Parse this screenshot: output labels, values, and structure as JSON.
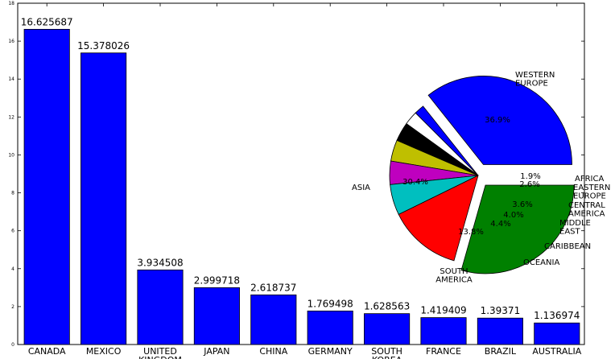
{
  "chart_data": [
    {
      "type": "bar",
      "title": "",
      "xlabel": "",
      "ylabel": "",
      "ylim": [
        0,
        18
      ],
      "yticks": [
        0,
        2,
        4,
        6,
        8,
        10,
        12,
        14,
        16,
        18
      ],
      "categories": [
        "CANADA",
        "MEXICO",
        "UNITED KINGDOM",
        "JAPAN",
        "CHINA",
        "GERMANY",
        "SOUTH KOREA",
        "FRANCE",
        "BRAZIL",
        "AUSTRALIA"
      ],
      "category_display": [
        "CANADA",
        "MEXICO",
        "UNITED KINGDOM",
        "JAPAN",
        "CHINA",
        "GERMANY",
        "SOUTH KOREA",
        "FRANCE",
        "BRAZIL",
        "AUSTRALIA"
      ],
      "values": [
        16.625687,
        15.378026,
        3.934508,
        2.999718,
        2.618737,
        1.769498,
        1.628563,
        1.419409,
        1.39371,
        1.136974
      ],
      "value_labels": [
        "16.625687",
        "15.378026",
        "3.934508",
        "2.999718",
        "2.618737",
        "1.769498",
        "1.628563",
        "1.419409",
        "1.39371",
        "1.136974"
      ],
      "color": "#0000ff"
    },
    {
      "type": "pie",
      "slices": [
        {
          "label": "WESTERN EUROPE",
          "value": 36.9,
          "pct": "36.9%",
          "color": "#0000ff",
          "explode": true
        },
        {
          "label": "AFRICA",
          "value": 1.9,
          "pct": "1.9%",
          "color": "#0000ff",
          "explode": false
        },
        {
          "label": "EASTERN EUROPE",
          "value": 2.6,
          "pct": "2.6%",
          "color": "#ffffff",
          "explode": false
        },
        {
          "label": "CENTRAL AMERICA",
          "value": 3.6,
          "pct": "3.6%",
          "color": "#000000",
          "explode": false
        },
        {
          "label": "MIDDLE EAST",
          "value": 4.0,
          "pct": "4.0%",
          "color": "#bfbf00",
          "explode": false
        },
        {
          "label": "CARIBBEAN",
          "value": 4.4,
          "pct": "4.4%",
          "color": "#bf00bf",
          "explode": false
        },
        {
          "label": "OCEANIA",
          "value": 5.8,
          "pct": "",
          "color": "#00bfbf",
          "explode": false
        },
        {
          "label": "SOUTH AMERICA",
          "value": 13.8,
          "pct": "13.8%",
          "color": "#ff0000",
          "explode": false
        },
        {
          "label": "ASIA",
          "value": 30.4,
          "pct": "30.4%",
          "color": "#008000",
          "explode": true
        }
      ]
    }
  ]
}
